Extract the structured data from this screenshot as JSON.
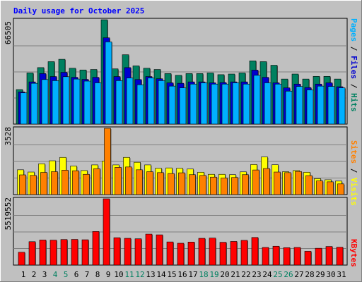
{
  "chart_data": {
    "type": "bar",
    "title": "Daily usage for October 2025",
    "categories": [
      "1",
      "2",
      "3",
      "4",
      "5",
      "6",
      "7",
      "8",
      "9",
      "10",
      "11",
      "12",
      "13",
      "14",
      "15",
      "16",
      "17",
      "18",
      "19",
      "20",
      "21",
      "22",
      "23",
      "24",
      "25",
      "26",
      "27",
      "28",
      "29",
      "30",
      "31"
    ],
    "weekend_days": [
      "4",
      "5",
      "11",
      "12",
      "18",
      "19",
      "25",
      "26"
    ],
    "panels": [
      {
        "id": "hits",
        "max_label": "66505",
        "ylim": [
          0,
          66505
        ],
        "series": [
          {
            "name": "Pages",
            "color": "#00b0ff",
            "values": [
              19900,
              26000,
              28400,
              27700,
              30200,
              28700,
              27400,
              26300,
              52400,
              27700,
              29400,
              25100,
              29400,
              27700,
              24200,
              23100,
              25500,
              26300,
              25500,
              25500,
              26300,
              25500,
              31100,
              26300,
              25500,
              21000,
              24000,
              21800,
              24200,
              24000,
              23100
            ]
          },
          {
            "name": "Files",
            "color": "#0000d0",
            "values": [
              20500,
              26900,
              32200,
              30300,
              33000,
              29800,
              28500,
              29800,
              55000,
              30300,
              36000,
              28400,
              30300,
              28900,
              26300,
              26000,
              26900,
              26900,
              26300,
              26500,
              26900,
              26900,
              34400,
              29800,
              26300,
              23100,
              25500,
              23300,
              25500,
              26300,
              23800
            ]
          },
          {
            "name": "Hits",
            "color": "#008060",
            "values": [
              22000,
              32600,
              36000,
              39800,
              41300,
              35600,
              34500,
              34800,
              66505,
              35200,
              44200,
              37100,
              35600,
              34800,
              32200,
              31100,
              32200,
              32200,
              32600,
              31500,
              31900,
              32600,
              40300,
              39800,
              37500,
              28700,
              31900,
              28700,
              30400,
              30400,
              28700
            ]
          }
        ]
      },
      {
        "id": "visits",
        "max_label": "3528",
        "ylim": [
          0,
          3528
        ],
        "series": [
          {
            "name": "Sites",
            "color": "#ff8000",
            "values": [
              1050,
              1020,
              1180,
              1220,
              1300,
              1270,
              1080,
              1380,
              3528,
              1450,
              1470,
              1320,
              1220,
              1170,
              1120,
              1160,
              1060,
              1020,
              930,
              880,
              910,
              1060,
              1310,
              1390,
              1200,
              1170,
              1230,
              1010,
              730,
              680,
              570
            ]
          },
          {
            "name": "Visits",
            "color": "#ffff00",
            "values": [
              1320,
              1200,
              1640,
              1800,
              1980,
              1520,
              1280,
              1580,
              1790,
              1580,
              1980,
              1720,
              1580,
              1400,
              1420,
              1400,
              1360,
              1190,
              1080,
              1080,
              1060,
              1210,
              1600,
              2000,
              1590,
              1220,
              1280,
              1190,
              850,
              790,
              720
            ]
          }
        ]
      },
      {
        "id": "kbytes",
        "max_label": "5519552",
        "ylim": [
          0,
          5519552
        ],
        "series": [
          {
            "name": "KBytes",
            "color": "#ff0000",
            "values": [
              1070000,
              1950000,
              2090000,
              2080000,
              2130000,
              2140000,
              2110000,
              2800000,
              5519552,
              2280000,
              2230000,
              2190000,
              2580000,
              2520000,
              1930000,
              1820000,
              1920000,
              2230000,
              2250000,
              1900000,
              1970000,
              2060000,
              2300000,
              1470000,
              1570000,
              1450000,
              1470000,
              1150000,
              1400000,
              1550000,
              1490000
            ]
          }
        ]
      }
    ],
    "legend": {
      "hits": [
        {
          "text": "Pages",
          "color": "#00b0ff"
        },
        {
          "text": " / ",
          "color": "#000000"
        },
        {
          "text": "Files",
          "color": "#0000d0"
        },
        {
          "text": " / ",
          "color": "#000000"
        },
        {
          "text": "Hits",
          "color": "#008060"
        }
      ],
      "visits": [
        {
          "text": "Sites",
          "color": "#ff8000"
        },
        {
          "text": " / ",
          "color": "#000000"
        },
        {
          "text": "Visits",
          "color": "#ffff00"
        }
      ],
      "kbytes": [
        {
          "text": "KBytes",
          "color": "#ff0000"
        }
      ]
    },
    "colors": {
      "background": "#c0c0c0",
      "title": "#0000ff",
      "weekend_label": "#008060",
      "weekday_label": "#000000"
    },
    "grid": true,
    "legend_placement": "right, rotated"
  }
}
